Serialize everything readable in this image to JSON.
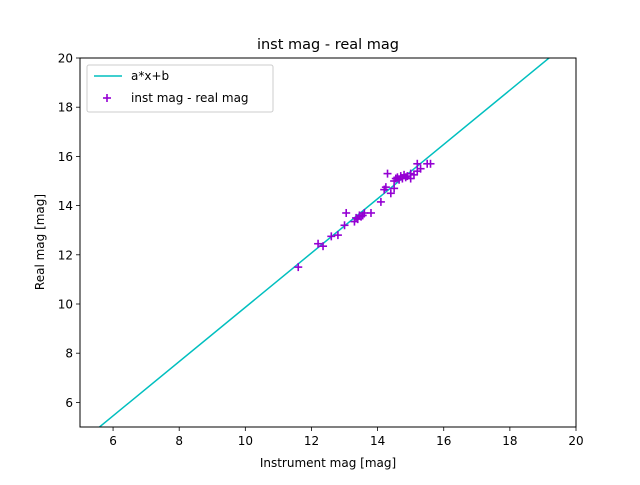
{
  "chart_data": {
    "type": "scatter",
    "title": "inst mag - real mag",
    "xlabel": "Instrument mag [mag]",
    "ylabel": "Real mag [mag]",
    "xlim": [
      5,
      20
    ],
    "ylim": [
      5,
      20
    ],
    "xticks": [
      6,
      8,
      10,
      12,
      14,
      16,
      18,
      20
    ],
    "yticks": [
      6,
      8,
      10,
      12,
      14,
      16,
      18,
      20
    ],
    "grid": false,
    "legend_position": "top-left",
    "series": [
      {
        "name": "a*x+b",
        "kind": "line",
        "color": "#00bfbf",
        "x": [
          5,
          20
        ],
        "y": [
          4.35,
          20.9
        ]
      },
      {
        "name": "inst mag - real mag",
        "kind": "scatter",
        "marker": "+",
        "color": "#9400d3",
        "x": [
          11.6,
          12.2,
          12.35,
          12.6,
          12.8,
          13.0,
          13.05,
          13.3,
          13.35,
          13.4,
          13.45,
          13.5,
          13.55,
          13.6,
          13.8,
          14.1,
          14.2,
          14.25,
          14.3,
          14.4,
          14.5,
          14.5,
          14.55,
          14.6,
          14.65,
          14.7,
          14.75,
          14.8,
          14.85,
          14.9,
          15.0,
          15.0,
          15.1,
          15.2,
          15.2,
          15.3,
          15.5,
          15.6
        ],
        "y": [
          11.5,
          12.45,
          12.35,
          12.75,
          12.8,
          13.2,
          13.7,
          13.35,
          13.5,
          13.45,
          13.6,
          13.55,
          13.6,
          13.7,
          13.7,
          14.15,
          14.65,
          14.75,
          15.3,
          14.5,
          14.7,
          15.0,
          15.1,
          15.15,
          15.05,
          15.2,
          15.1,
          15.25,
          15.15,
          15.2,
          15.3,
          15.1,
          15.25,
          15.4,
          15.7,
          15.5,
          15.7,
          15.7
        ]
      }
    ]
  }
}
